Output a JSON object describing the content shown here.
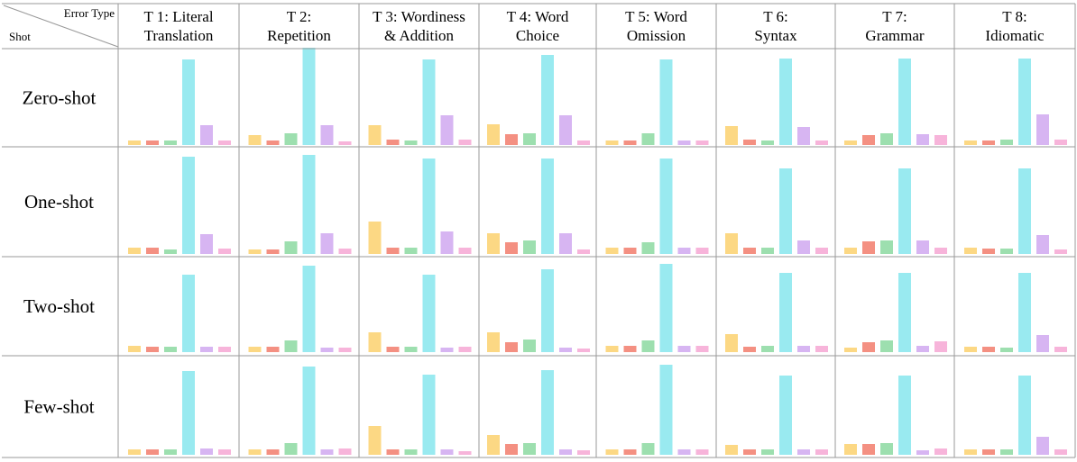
{
  "corner": {
    "top_label": "Error Type",
    "bottom_label": "Shot"
  },
  "columns": [
    {
      "line1": "T 1: Literal",
      "line2": "Translation"
    },
    {
      "line1": "T 2:",
      "line2": "Repetition"
    },
    {
      "line1": "T 3: Wordiness",
      "line2": "& Addition"
    },
    {
      "line1": "T 4: Word",
      "line2": "Choice"
    },
    {
      "line1": "T 5: Word",
      "line2": "Omission"
    },
    {
      "line1": "T 6:",
      "line2": "Syntax"
    },
    {
      "line1": "T 7:",
      "line2": "Grammar"
    },
    {
      "line1": "T 8:",
      "line2": "Idiomatic"
    }
  ],
  "rows": [
    {
      "label": "Zero-shot"
    },
    {
      "label": "One-shot"
    },
    {
      "label": "Two-shot"
    },
    {
      "label": "Few-shot"
    }
  ],
  "bar_colors": [
    "#fcd884",
    "#f49082",
    "#9ddfaf",
    "#99eaf0",
    "#d7b5f2",
    "#f7b4da"
  ],
  "chart_data": {
    "type": "bar",
    "grid": "small multiples: rows = shot setting, columns = error type",
    "bars_per_cell": 6,
    "ylim": [
      0,
      100
    ],
    "cells": [
      [
        [
          5,
          5,
          5,
          95,
          22,
          5
        ],
        [
          11,
          5,
          13,
          108,
          22,
          4
        ],
        [
          22,
          6,
          5,
          95,
          33,
          6
        ],
        [
          23,
          12,
          13,
          100,
          33,
          5
        ],
        [
          5,
          5,
          13,
          95,
          5,
          5
        ],
        [
          21,
          6,
          5,
          96,
          20,
          5
        ],
        [
          5,
          11,
          13,
          96,
          12,
          11
        ],
        [
          5,
          5,
          6,
          96,
          34,
          6
        ]
      ],
      [
        [
          7,
          7,
          5,
          108,
          22,
          6
        ],
        [
          5,
          5,
          14,
          110,
          23,
          6
        ],
        [
          36,
          7,
          7,
          106,
          25,
          7
        ],
        [
          23,
          13,
          15,
          106,
          23,
          5
        ],
        [
          7,
          7,
          13,
          106,
          7,
          7
        ],
        [
          23,
          7,
          7,
          95,
          15,
          7
        ],
        [
          7,
          14,
          15,
          95,
          15,
          7
        ],
        [
          7,
          6,
          6,
          95,
          21,
          5
        ]
      ],
      [
        [
          7,
          6,
          6,
          86,
          6,
          6
        ],
        [
          6,
          6,
          13,
          96,
          5,
          5
        ],
        [
          22,
          6,
          6,
          86,
          5,
          6
        ],
        [
          22,
          11,
          14,
          92,
          5,
          4
        ],
        [
          7,
          7,
          13,
          98,
          7,
          7
        ],
        [
          20,
          6,
          7,
          88,
          7,
          7
        ],
        [
          5,
          11,
          13,
          88,
          7,
          12
        ],
        [
          6,
          6,
          5,
          88,
          19,
          6
        ]
      ],
      [
        [
          6,
          6,
          6,
          93,
          7,
          6
        ],
        [
          6,
          6,
          13,
          98,
          6,
          7
        ],
        [
          32,
          6,
          6,
          89,
          6,
          4
        ],
        [
          22,
          12,
          13,
          94,
          6,
          5
        ],
        [
          6,
          6,
          13,
          100,
          6,
          6
        ],
        [
          11,
          6,
          6,
          88,
          6,
          6
        ],
        [
          12,
          12,
          13,
          88,
          5,
          7
        ],
        [
          6,
          6,
          6,
          88,
          20,
          6
        ]
      ]
    ]
  }
}
